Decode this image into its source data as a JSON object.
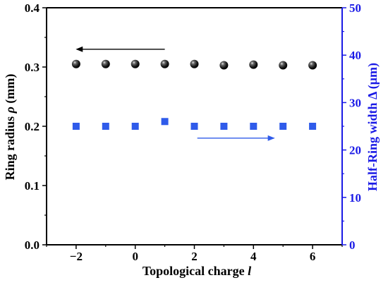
{
  "chart_data": {
    "type": "scatter",
    "xlabel": "Topological charge",
    "xlabel_symbol": "l",
    "ylabel_left": "Ring radius",
    "ylabel_left_symbol": "ρ",
    "ylabel_left_unit": "(mm)",
    "ylabel_right": "Half-Ring width Δ (μm)",
    "xlim": [
      -3,
      7
    ],
    "ylim_left": [
      0.0,
      0.4
    ],
    "ylim_right": [
      0,
      50
    ],
    "x_ticks": [
      -2,
      0,
      2,
      4,
      6
    ],
    "x_tick_labels": [
      "−2",
      "0",
      "2",
      "4",
      "6"
    ],
    "y_left_ticks": [
      0.0,
      0.1,
      0.2,
      0.3,
      0.4
    ],
    "y_left_tick_labels": [
      "0.0",
      "0.1",
      "0.2",
      "0.3",
      "0.4"
    ],
    "y_right_ticks": [
      0,
      10,
      20,
      30,
      40,
      50
    ],
    "y_right_tick_labels": [
      "0",
      "10",
      "20",
      "30",
      "40",
      "50"
    ],
    "grid": false,
    "series": [
      {
        "axis": "left",
        "marker": "sphere",
        "color": "#111111",
        "x": [
          -2,
          -1,
          0,
          1,
          2,
          3,
          4,
          5,
          6
        ],
        "y": [
          0.305,
          0.305,
          0.305,
          0.305,
          0.305,
          0.303,
          0.304,
          0.303,
          0.303
        ]
      },
      {
        "axis": "right",
        "marker": "square",
        "color": "#2f5bea",
        "x": [
          -2,
          -1,
          0,
          1,
          2,
          3,
          4,
          5,
          6
        ],
        "y": [
          25,
          25,
          25,
          26,
          25,
          25,
          25,
          25,
          25
        ]
      }
    ],
    "annotations": [
      {
        "type": "arrow",
        "direction": "left",
        "color": "#000000",
        "points_to": "left-axis",
        "x_from": 1.0,
        "x_to": -1.8,
        "y": 0.33
      },
      {
        "type": "arrow",
        "direction": "right",
        "color": "#2f5bea",
        "points_to": "right-axis",
        "x_from": 2.1,
        "x_to": 4.7,
        "y": 0.18
      }
    ],
    "colors": {
      "left_axis": "#000000",
      "right_axis": "#1a1ae6"
    }
  }
}
